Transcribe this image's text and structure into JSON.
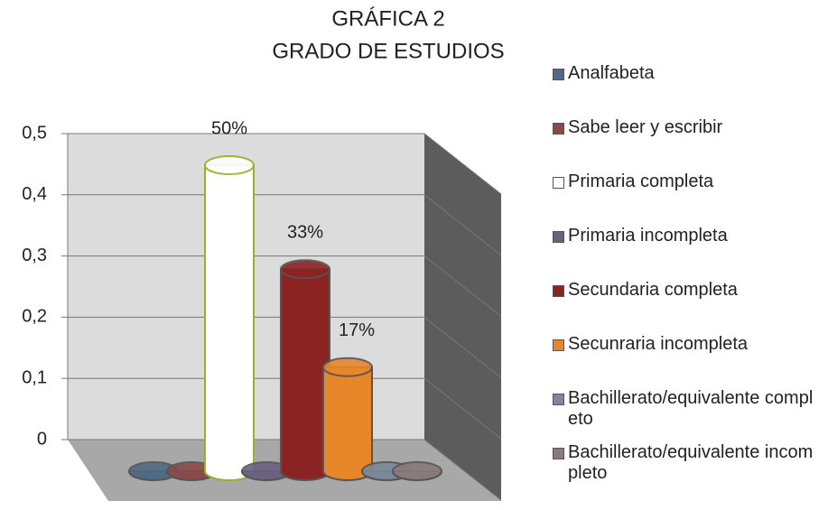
{
  "chart_data": {
    "type": "bar3d",
    "title": [
      "GRÁFICA  2",
      "GRADO DE ESTUDIOS"
    ],
    "categories": [
      "Analfabeta",
      "Sabe leer y escribir",
      "Primaria completa",
      "Primaria incompleta",
      "Secundaria completa",
      "Secunraria incompleta",
      "Bachillerato/equivalente completo",
      "Bachillerato/equivalente incompleto"
    ],
    "values": [
      0,
      0,
      0.5,
      0,
      0.33,
      0.17,
      0,
      0
    ],
    "value_labels": [
      null,
      null,
      "50%",
      null,
      "33%",
      "17%",
      null,
      null
    ],
    "colors": [
      "#4f6a85",
      "#8b4a4a",
      "#ffffff",
      "#6a6280",
      "#8b2323",
      "#e8862a",
      "#7a8899",
      "#8a7a7a"
    ],
    "ylim": [
      0,
      0.5
    ],
    "yticks": [
      0,
      {
        "value": 0.1,
        "label": "0,1"
      },
      {
        "value": 0.2,
        "label": "0,2"
      },
      {
        "value": 0.3,
        "label": "0,3"
      },
      {
        "value": 0.4,
        "label": "0,4"
      },
      {
        "value": 0.5,
        "label": "0,5"
      }
    ],
    "grid": true,
    "legend": "right"
  }
}
